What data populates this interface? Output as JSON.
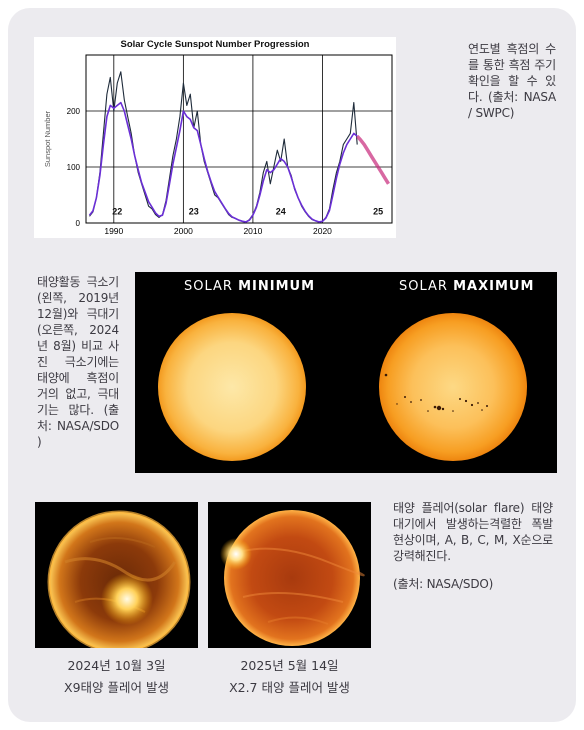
{
  "chart_data": {
    "type": "line",
    "title": "Solar Cycle Sunspot Number Progression",
    "ylabel": "Sunspot Number",
    "xlabel": "",
    "xlim": [
      1986,
      2030
    ],
    "ylim": [
      0,
      300
    ],
    "x_ticks": [
      1990,
      2000,
      2010,
      2020
    ],
    "y_ticks": [
      0,
      100,
      200
    ],
    "grid": true,
    "cycle_labels": [
      {
        "label": "22",
        "x": 1990.5,
        "y": 15
      },
      {
        "label": "23",
        "x": 2001.5,
        "y": 15
      },
      {
        "label": "24",
        "x": 2014,
        "y": 15
      },
      {
        "label": "25",
        "x": 2028,
        "y": 15
      }
    ],
    "series": [
      {
        "color": "#1e2b3a",
        "x": [
          1986.5,
          1987,
          1987.5,
          1988,
          1988.5,
          1989,
          1989.5,
          1990,
          1990.5,
          1991,
          1991.5,
          1992,
          1992.5,
          1993,
          1993.5,
          1994,
          1994.5,
          1995,
          1995.5,
          1996,
          1996.5,
          1997,
          1997.5,
          1998,
          1998.5,
          1999,
          1999.5,
          2000,
          2000.5,
          2001,
          2001.5,
          2002,
          2002.5,
          2003,
          2003.5,
          2004,
          2004.5,
          2005,
          2005.5,
          2006,
          2006.5,
          2007,
          2007.5,
          2008,
          2008.5,
          2009,
          2009.5,
          2010,
          2010.5,
          2011,
          2011.5,
          2012,
          2012.5,
          2013,
          2013.5,
          2014,
          2014.5,
          2015,
          2015.5,
          2016,
          2016.5,
          2017,
          2017.5,
          2018,
          2018.5,
          2019,
          2019.5,
          2020,
          2020.5,
          2021,
          2021.5,
          2022,
          2022.5,
          2023,
          2023.5,
          2024,
          2024.5,
          2025
        ],
        "y": [
          12,
          20,
          45,
          90,
          160,
          230,
          260,
          200,
          250,
          270,
          220,
          190,
          160,
          120,
          90,
          70,
          50,
          30,
          25,
          15,
          10,
          15,
          40,
          80,
          120,
          150,
          190,
          250,
          210,
          230,
          170,
          200,
          140,
          110,
          90,
          70,
          50,
          45,
          35,
          25,
          15,
          10,
          8,
          5,
          3,
          2,
          6,
          15,
          30,
          55,
          90,
          110,
          70,
          100,
          130,
          110,
          150,
          100,
          85,
          60,
          45,
          30,
          20,
          12,
          6,
          4,
          2,
          3,
          10,
          25,
          60,
          90,
          110,
          140,
          150,
          160,
          215,
          140
        ]
      },
      {
        "color": "#6a2fd6",
        "x": [
          1986.5,
          1987,
          1987.5,
          1988,
          1988.5,
          1989,
          1989.5,
          1990,
          1990.5,
          1991,
          1991.5,
          1992,
          1992.5,
          1993,
          1993.5,
          1994,
          1994.5,
          1995,
          1995.5,
          1996,
          1996.5,
          1997,
          1997.5,
          1998,
          1998.5,
          1999,
          1999.5,
          2000,
          2000.5,
          2001,
          2001.5,
          2002,
          2002.5,
          2003,
          2003.5,
          2004,
          2004.5,
          2005,
          2005.5,
          2006,
          2006.5,
          2007,
          2007.5,
          2008,
          2008.5,
          2009,
          2009.5,
          2010,
          2010.5,
          2011,
          2011.5,
          2012,
          2012.5,
          2013,
          2013.5,
          2014,
          2014.5,
          2015,
          2015.5,
          2016,
          2016.5,
          2017,
          2017.5,
          2018,
          2018.5,
          2019,
          2019.5,
          2020,
          2020.5,
          2021,
          2021.5,
          2022,
          2022.5,
          2023,
          2023.5,
          2024,
          2024.5,
          2025
        ],
        "y": [
          14,
          22,
          45,
          85,
          140,
          190,
          210,
          205,
          210,
          215,
          200,
          175,
          150,
          120,
          95,
          72,
          55,
          38,
          28,
          18,
          12,
          14,
          35,
          70,
          105,
          135,
          165,
          200,
          190,
          185,
          170,
          165,
          140,
          115,
          92,
          73,
          56,
          46,
          36,
          26,
          17,
          11,
          8,
          5,
          3,
          2,
          5,
          14,
          28,
          50,
          75,
          95,
          90,
          95,
          105,
          115,
          110,
          100,
          82,
          62,
          45,
          32,
          21,
          13,
          7,
          4,
          2,
          3,
          9,
          22,
          50,
          80,
          105,
          125,
          140,
          150,
          160,
          155
        ]
      },
      {
        "name": "",
        "color": "#c8287a",
        "x": [
          2025,
          2025.5,
          2026,
          2026.5,
          2027,
          2027.5,
          2028,
          2028.5,
          2029,
          2029.5
        ],
        "y": [
          155,
          148,
          140,
          130,
          120,
          110,
          100,
          90,
          80,
          70
        ]
      }
    ]
  },
  "captions": {
    "chart": "연도별 흑점의 수를 통한 흑점 주기 확인을 할 수 있다. (출처: NASA / SWPC)",
    "sun_compare": "태양활동 극소기(왼쪽, 2019년 12월)와 극대기(오른쪽, 2024년 8월) 비교 사진 극소기에는 태양에 흑점이 거의 없고, 극대기는 많다. (출처: NASA/SDO )",
    "flare_line1": "태양 플레어(solar flare) 태양 대기에서 발생하는격렬한 폭발 현상이며, A, B, C, M, X순으로 강력해진다.",
    "flare_line2": "(출처: NASA/SDO)"
  },
  "sun_labels": {
    "minimum_prefix": "SOLAR ",
    "minimum_bold": "MINIMUM",
    "maximum_prefix": "SOLAR ",
    "maximum_bold": "MAXIMUM"
  },
  "flare_photos": [
    {
      "date": "2024년 10월 3일",
      "event": "X9태양 플레어 발생"
    },
    {
      "date": "2025년 5월 14일",
      "event": "X2.7 태양 플레어 발생"
    }
  ],
  "colors": {
    "panel_bg": "#ecebef",
    "caption_text": "#3c3a42",
    "sun_min": "#fbd27a",
    "sun_max": "#fbb12e"
  }
}
